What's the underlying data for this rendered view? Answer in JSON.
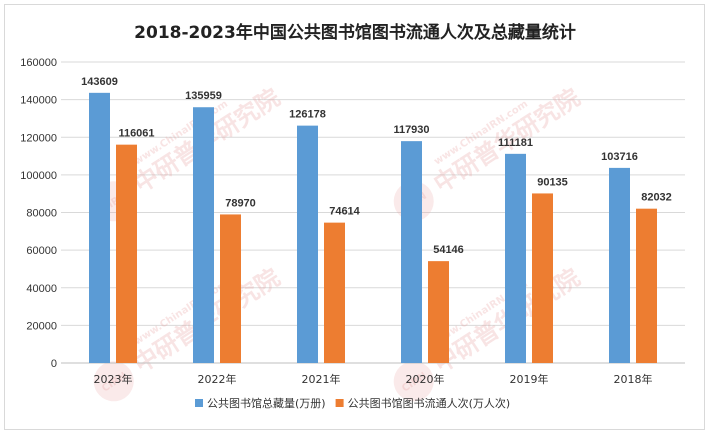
{
  "chart_data": {
    "type": "bar",
    "title": "2018-2023年中国公共图书馆图书流通人次及总藏量统计",
    "categories": [
      "2023年",
      "2022年",
      "2021年",
      "2020年",
      "2019年",
      "2018年"
    ],
    "series": [
      {
        "name": "公共图书馆总藏量(万册)",
        "color": "#5b9bd5",
        "values": [
          143609,
          135959,
          126178,
          117930,
          111181,
          103716
        ]
      },
      {
        "name": "公共图书馆图书流通人次(万人次)",
        "color": "#ed7d31",
        "values": [
          116061,
          78970,
          74614,
          54146,
          90135,
          82032
        ]
      }
    ],
    "ylim": [
      0,
      160000
    ],
    "yticks": [
      0,
      20000,
      40000,
      60000,
      80000,
      100000,
      120000,
      140000,
      160000
    ],
    "grid": true,
    "legend_position": "bottom"
  },
  "watermark": {
    "text_cn": "中研普华研究院",
    "text_url": "www.ChinaIRN.com",
    "logo": "CIRN"
  }
}
